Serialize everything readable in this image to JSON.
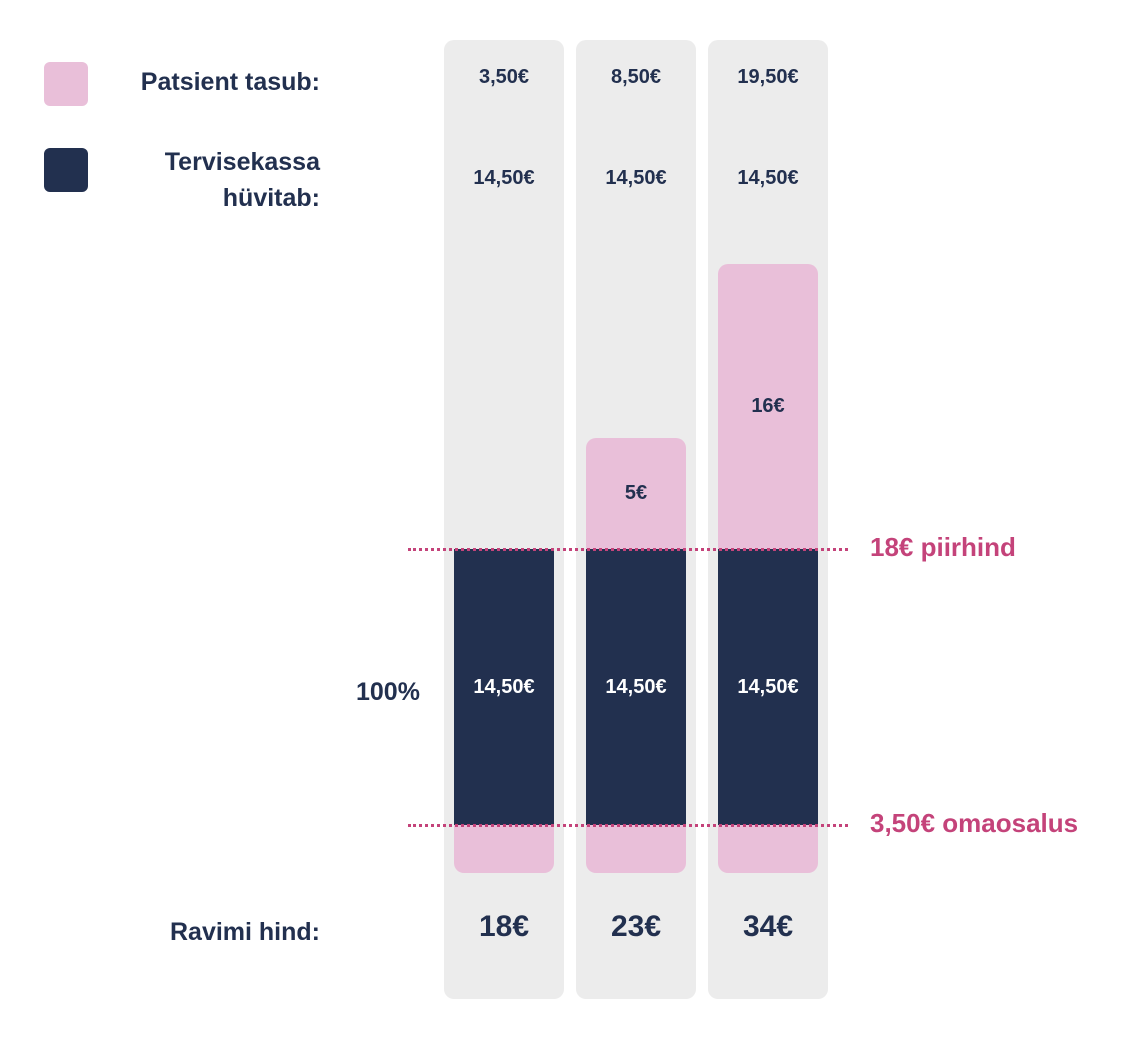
{
  "legend": {
    "items": [
      {
        "label": "Patsient tasub:"
      },
      {
        "label": "Tervisekassa hüvitab:"
      }
    ]
  },
  "columns": [
    {
      "patient_pays": "3,50€",
      "fund_reimburses": "14,50€",
      "covered": "14,50€",
      "price": "18€"
    },
    {
      "patient_pays": "8,50€",
      "fund_reimburses": "14,50€",
      "extra": "5€",
      "covered": "14,50€",
      "price": "23€"
    },
    {
      "patient_pays": "19,50€",
      "fund_reimburses": "14,50€",
      "extra": "16€",
      "covered": "14,50€",
      "price": "34€"
    }
  ],
  "side_label": "100%",
  "price_label": "Ravimi hind:",
  "lines": [
    "18€ piirhind",
    "3,50€ omaosalus"
  ]
}
